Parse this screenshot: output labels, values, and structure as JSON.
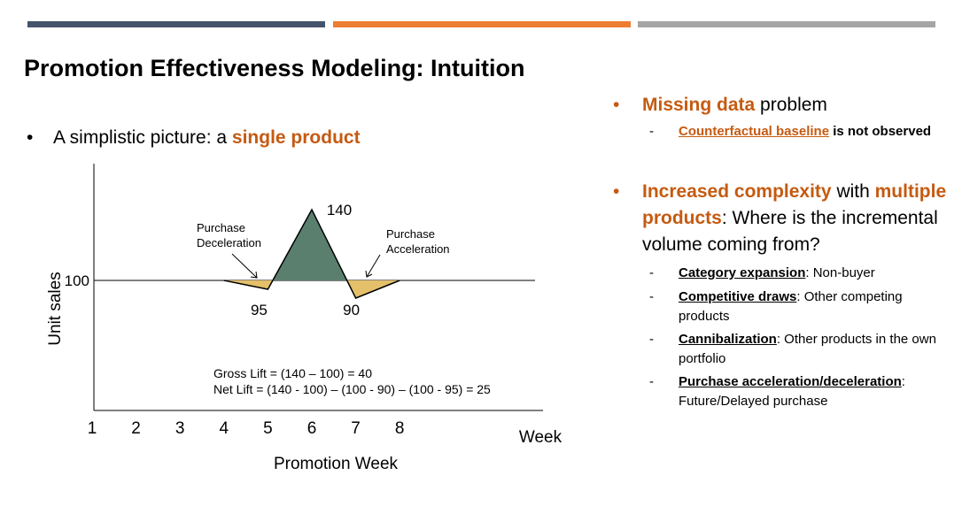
{
  "title": "Promotion Effectiveness Modeling: Intuition",
  "left_bullet": {
    "bullet": "•",
    "text": "A simplistic picture: a ",
    "highlight": "single product"
  },
  "right": {
    "b1": {
      "bullet": "•",
      "highlight": "Missing data",
      "text": " problem"
    },
    "b1_sub": {
      "dash": "-",
      "link": "Counterfactual baseline",
      "text": " is not observed"
    },
    "b2": {
      "bullet": "•",
      "highlight1": "Increased complexity",
      "text1": " with ",
      "highlight2": "multiple products",
      "text2": ": Where is the incremental volume coming from?"
    },
    "subs": [
      {
        "dash": "-",
        "term": "Category expansion",
        "desc": ": Non-buyer"
      },
      {
        "dash": "-",
        "term": "Competitive draws",
        "desc": ": Other competing products"
      },
      {
        "dash": "-",
        "term": "Cannibalization",
        "desc": ": Other products in the own portfolio"
      },
      {
        "dash": "-",
        "term": "Purchase acceleration/deceleration",
        "desc": ": Future/Delayed purchase"
      }
    ]
  },
  "chart_data": {
    "type": "line",
    "x_ticks": [
      "1",
      "2",
      "3",
      "4",
      "5",
      "6",
      "7",
      "8"
    ],
    "baseline": 100,
    "baseline_label": "100",
    "points": [
      {
        "x": 4,
        "y": 100
      },
      {
        "x": 5,
        "y": 95
      },
      {
        "x": 6,
        "y": 140
      },
      {
        "x": 7,
        "y": 90
      },
      {
        "x": 8,
        "y": 100
      }
    ],
    "value_labels": [
      "95",
      "140",
      "90"
    ],
    "ylabel": "Unit sales",
    "xlabel": "Promotion Week",
    "x_end_label": "Week",
    "annotations": {
      "deceleration": [
        "Purchase",
        "Deceleration"
      ],
      "acceleration": [
        "Purchase",
        "Acceleration"
      ]
    },
    "formulas": [
      "Gross Lift = (140 – 100) = 40",
      "Net Lift = (140 - 100) – (100  - 90) – (100  - 95)  = 25"
    ],
    "colors": {
      "peak": "#5b7f6e",
      "dip": "#e5c06a"
    }
  }
}
